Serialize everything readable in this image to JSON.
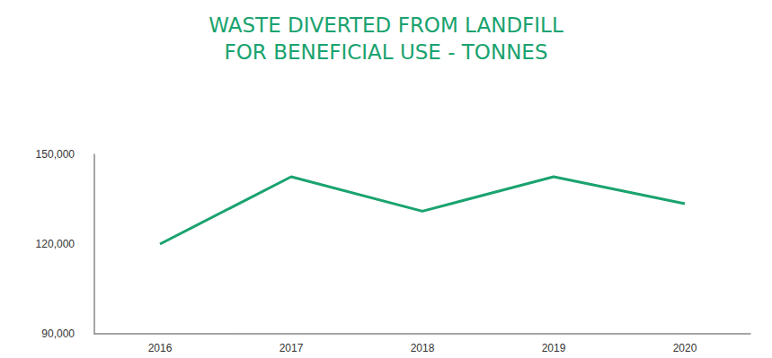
{
  "chart_data": {
    "type": "line",
    "title": "WASTE DIVERTED FROM LANDFILL\nFOR BENEFICIAL USE - TONNES",
    "categories": [
      "2016",
      "2017",
      "2018",
      "2019",
      "2020"
    ],
    "values": [
      120000,
      142500,
      131000,
      142500,
      133500
    ],
    "color": "#1aa36f",
    "ylim": [
      90000,
      150000
    ],
    "yticks": [
      {
        "value": 90000,
        "label": "90,000"
      },
      {
        "value": 120000,
        "label": "120,000"
      },
      {
        "value": 150000,
        "label": "150,000"
      }
    ],
    "grid": false
  }
}
